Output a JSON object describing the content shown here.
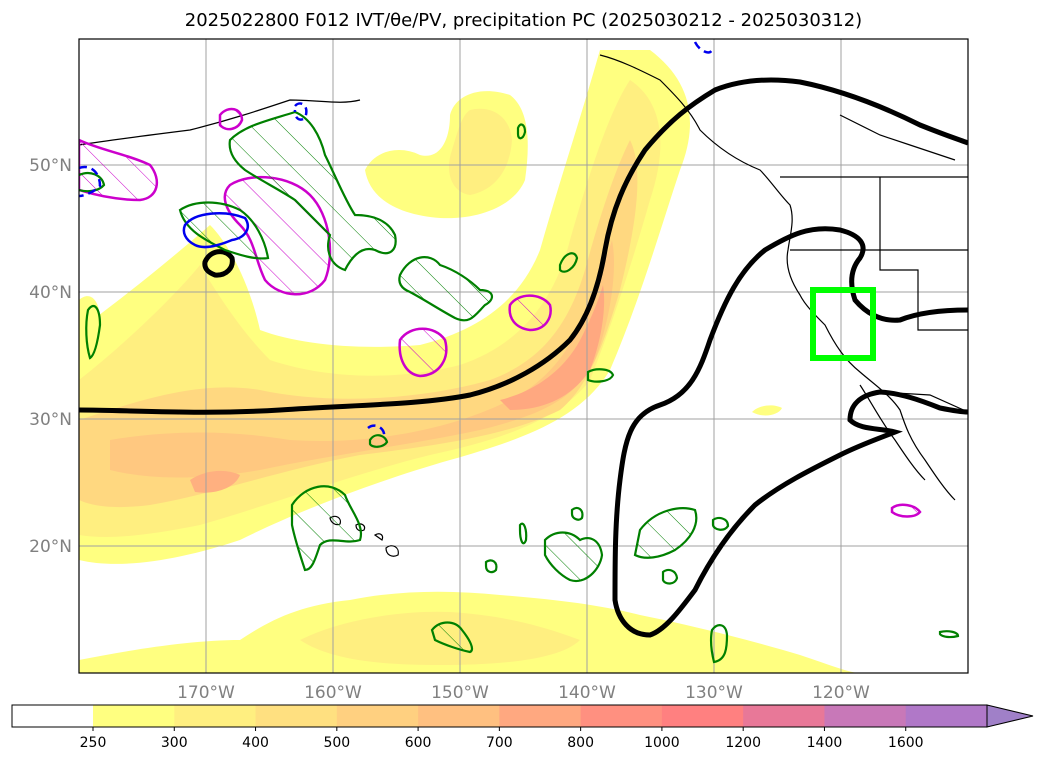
{
  "title": "2025022800 F012 IVT/θe/PV, precipitation PC (2025030212 - 2025030312)",
  "map": {
    "lat_labels": [
      "50°N",
      "40°N",
      "30°N",
      "20°N"
    ],
    "lon_labels": [
      "170°W",
      "160°W",
      "150°W",
      "140°W",
      "130°W",
      "120°W"
    ],
    "box_color": "#00ff00",
    "theta_color": "#000000",
    "pv_color": "#cc00cc",
    "green_color": "#008000",
    "blue_color": "#0000ee"
  },
  "colorbar": {
    "ticks": [
      "250",
      "300",
      "400",
      "500",
      "600",
      "700",
      "800",
      "1000",
      "1200",
      "1400",
      "1600"
    ],
    "colors": [
      "#ffffff",
      "#ffff80",
      "#ffef80",
      "#ffe080",
      "#ffd080",
      "#ffc080",
      "#ffa880",
      "#ff9080",
      "#ff8080",
      "#e87898",
      "#c878b8",
      "#b078c8",
      "#a080c8"
    ]
  }
}
